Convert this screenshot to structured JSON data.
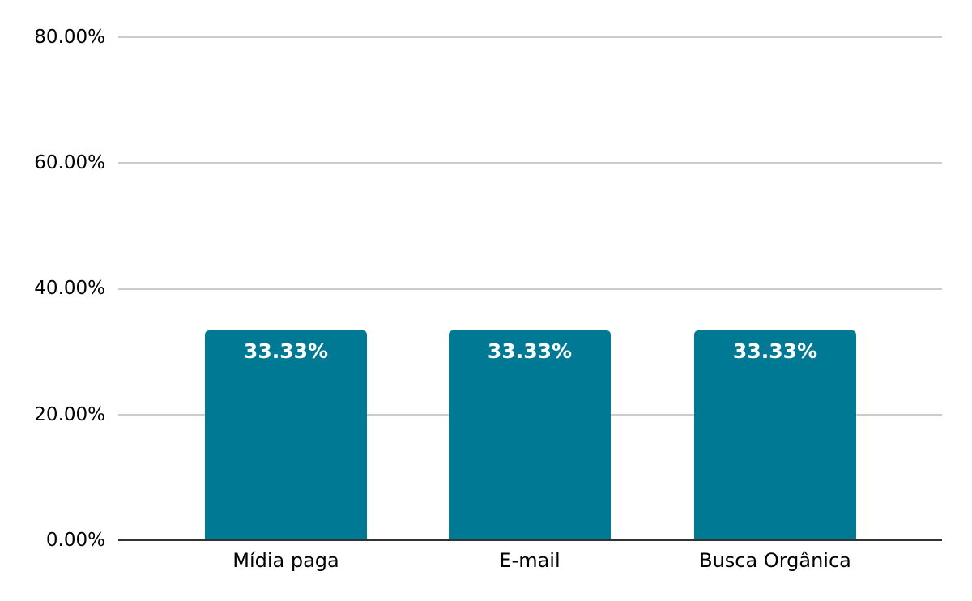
{
  "chart_data": {
    "type": "bar",
    "title": "",
    "categories": [
      "Mídia paga",
      "E-mail",
      "Busca Orgânica"
    ],
    "values": [
      33.33,
      33.33,
      33.33
    ],
    "value_labels": [
      "33.33%",
      "33.33%",
      "33.33%"
    ],
    "y_axis": {
      "tick_labels": [
        "80.00%",
        "60.00%",
        "40.00%",
        "20.00%",
        "0.00%"
      ],
      "tick_values": [
        80,
        60,
        40,
        20,
        0
      ],
      "min": 0,
      "max": 80
    },
    "grid": true,
    "legend": "none",
    "background": "#ffffff",
    "colors": {
      "bar": "#007A94",
      "value_label": "#ffffff",
      "gridline": "#cccccc",
      "axis_line": "#333333",
      "tick_text": "#000000"
    }
  }
}
